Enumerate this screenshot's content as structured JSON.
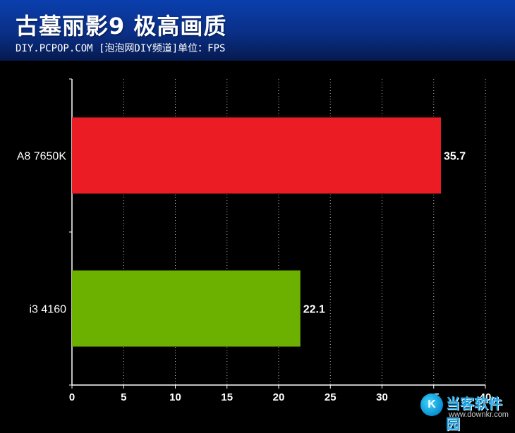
{
  "header": {
    "title": "古墓丽影9 极高画质",
    "subtitle": "DIY.PCPOP.COM [泡泡网DIY频道]单位：FPS"
  },
  "watermark": {
    "name": "当客软件园",
    "url": "www.downkr.com",
    "logo_glyph": "K"
  },
  "chart_data": {
    "type": "bar",
    "orientation": "horizontal",
    "title": "古墓丽影9 极高画质",
    "unit": "FPS",
    "categories": [
      "A8 7650K",
      "i3 4160"
    ],
    "values": [
      35.7,
      22.1
    ],
    "value_labels": [
      "35.7",
      "22.1"
    ],
    "colors": [
      "#ec1c24",
      "#6cb000"
    ],
    "xlim": [
      0,
      40
    ],
    "xticks": [
      "0",
      "5",
      "10",
      "15",
      "20",
      "25",
      "30",
      "35",
      "40"
    ],
    "grid": "vertical-dotted"
  }
}
